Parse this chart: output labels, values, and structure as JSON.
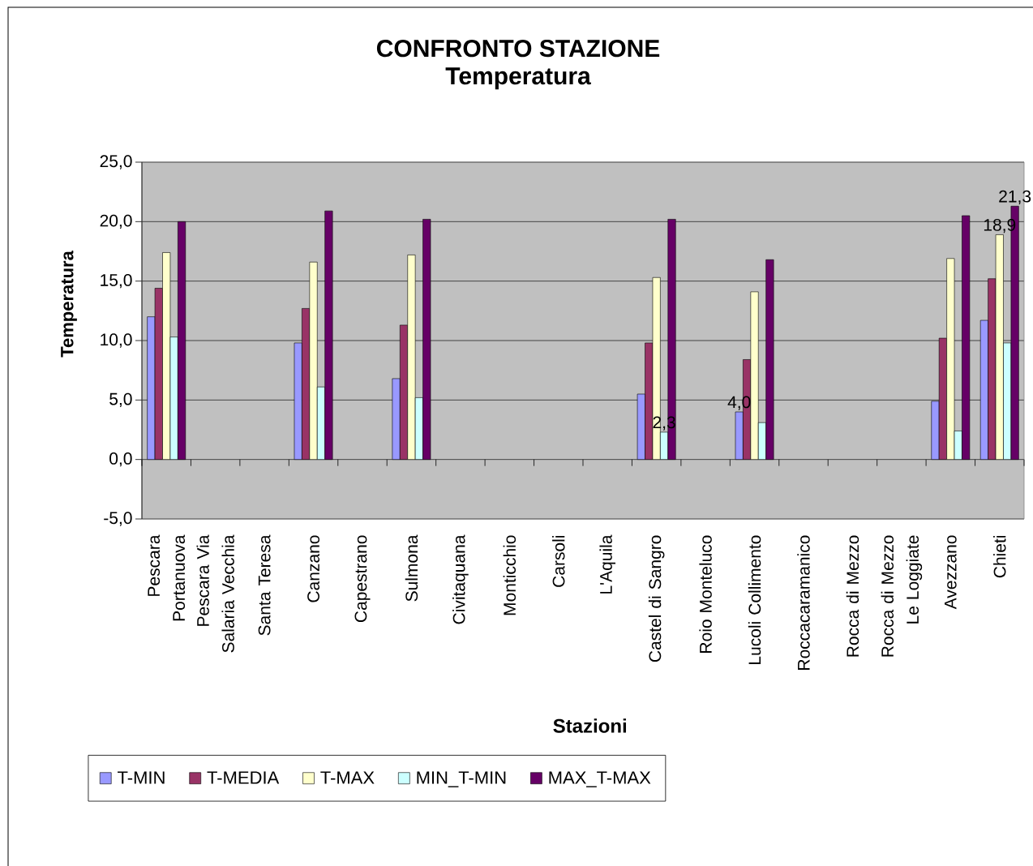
{
  "chart_data": {
    "type": "bar",
    "title": "CONFRONTO STAZIONE",
    "subtitle": "Temperatura",
    "xlabel": "Stazioni",
    "ylabel": "Temperatura",
    "categories": [
      "Pescara Portanuova",
      "Pescara Via Salaria Vecchia",
      "Santa Teresa",
      "Canzano",
      "Capestrano",
      "Sulmona",
      "Civitaquana",
      "Monticchio",
      "Carsoli",
      "L'Aquila",
      "Castel di Sangro",
      "Roio Monteluco",
      "Lucoli Collimento",
      "Roccacaramanico",
      "Rocca di Mezzo",
      "Rocca di Mezzo Le Loggiate",
      "Avezzano",
      "Chieti"
    ],
    "series": [
      {
        "name": "T-MIN",
        "color": "#9999ff",
        "values": [
          12.0,
          null,
          null,
          9.8,
          null,
          6.8,
          null,
          null,
          null,
          null,
          5.5,
          null,
          4.0,
          null,
          null,
          null,
          4.9,
          11.7
        ],
        "value_labels": [
          null,
          null,
          null,
          null,
          null,
          null,
          null,
          null,
          null,
          null,
          null,
          null,
          "4,0",
          null,
          null,
          null,
          null,
          null
        ]
      },
      {
        "name": "T-MEDIA",
        "color": "#993366",
        "values": [
          14.4,
          null,
          null,
          12.7,
          null,
          11.3,
          null,
          null,
          null,
          null,
          9.8,
          null,
          8.4,
          null,
          null,
          null,
          10.2,
          15.2
        ]
      },
      {
        "name": "T-MAX",
        "color": "#ffffcc",
        "values": [
          17.4,
          null,
          null,
          16.6,
          null,
          17.2,
          null,
          null,
          null,
          null,
          15.3,
          null,
          14.1,
          null,
          null,
          null,
          16.9,
          18.9
        ],
        "value_labels": [
          null,
          null,
          null,
          null,
          null,
          null,
          null,
          null,
          null,
          null,
          null,
          null,
          null,
          null,
          null,
          null,
          null,
          "18,9"
        ]
      },
      {
        "name": "MIN_T-MIN",
        "color": "#ccffff",
        "values": [
          10.3,
          null,
          null,
          6.1,
          null,
          5.2,
          null,
          null,
          null,
          null,
          2.3,
          null,
          3.1,
          null,
          null,
          null,
          2.4,
          9.8
        ],
        "value_labels": [
          null,
          null,
          null,
          null,
          null,
          null,
          null,
          null,
          null,
          null,
          "2,3",
          null,
          null,
          null,
          null,
          null,
          null,
          null
        ]
      },
      {
        "name": "MAX_T-MAX",
        "color": "#660066",
        "values": [
          20.0,
          null,
          null,
          20.9,
          null,
          20.2,
          null,
          null,
          null,
          null,
          20.2,
          null,
          16.8,
          null,
          null,
          null,
          20.5,
          21.3
        ],
        "value_labels": [
          null,
          null,
          null,
          null,
          null,
          null,
          null,
          null,
          null,
          null,
          null,
          null,
          null,
          null,
          null,
          null,
          null,
          "21,3"
        ]
      }
    ],
    "ylim": [
      -5,
      25
    ],
    "yticks": [
      {
        "value": -5,
        "label": "-5,0"
      },
      {
        "value": 0,
        "label": "0,0"
      },
      {
        "value": 5,
        "label": "5,0"
      },
      {
        "value": 10,
        "label": "10,0"
      },
      {
        "value": 15,
        "label": "15,0"
      },
      {
        "value": 20,
        "label": "20,0"
      },
      {
        "value": 25,
        "label": "25,0"
      }
    ],
    "grid": "y",
    "legend": "bottom left"
  }
}
